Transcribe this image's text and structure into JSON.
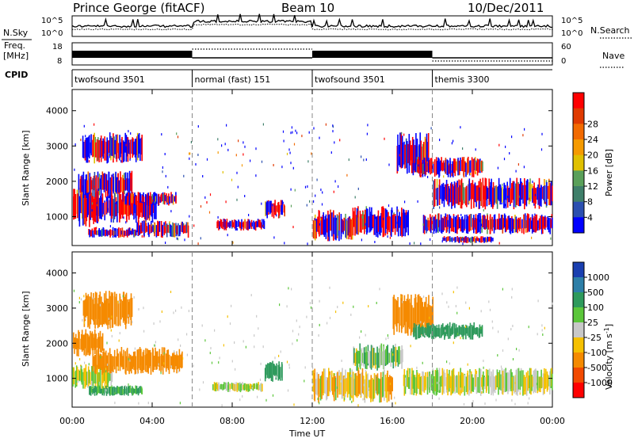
{
  "header": {
    "station": "Prince George (fitACF)",
    "beam": "Beam 10",
    "date": "10/Dec/2011"
  },
  "panel_labels": {
    "nsky": "N.Sky",
    "nsky_ticks": [
      "10^5",
      "10^0"
    ],
    "nsearch": "N.Search",
    "nsearch_ticks": [
      "10^5",
      "10^0"
    ],
    "freq_top": "Freq.",
    "freq_unit": "[MHz]",
    "freq_ticks": [
      "18",
      "8"
    ],
    "nave": "Nave",
    "nave_ticks": [
      "60",
      "0"
    ],
    "cpid": "CPID"
  },
  "cpid_segments": [
    {
      "label": "twofsound 3501",
      "start_hr": 0,
      "end_hr": 6
    },
    {
      "label": "normal (fast) 151",
      "start_hr": 6,
      "end_hr": 12
    },
    {
      "label": "twofsound 3501",
      "start_hr": 12,
      "end_hr": 18
    },
    {
      "label": "themis 3300",
      "start_hr": 18,
      "end_hr": 24
    }
  ],
  "time_axis": {
    "label": "Time UT",
    "ticks": [
      "00:00",
      "04:00",
      "08:00",
      "12:00",
      "16:00",
      "20:00",
      "00:00"
    ],
    "tick_hours": [
      0,
      4,
      8,
      12,
      16,
      20,
      24
    ]
  },
  "range_axis": {
    "label": "Slant Range [km]",
    "ticks": [
      "1000",
      "2000",
      "3000",
      "4000"
    ],
    "tick_values": [
      1000,
      2000,
      3000,
      4000
    ],
    "ylim": [
      180,
      4600
    ]
  },
  "power_scale": {
    "label": "Power [dB]",
    "ticks": [
      "4",
      "8",
      "12",
      "16",
      "20",
      "24",
      "28"
    ],
    "colors": [
      "#0000ff",
      "#2b4fb0",
      "#3f7f6a",
      "#5aa05a",
      "#e0c000",
      "#f59a00",
      "#f26a00",
      "#e03a00",
      "#ff0000"
    ]
  },
  "velocity_scale": {
    "label": "Velocity [m s",
    "label_sup": "-1",
    "label_end": "]",
    "ticks": [
      "1000",
      "500",
      "100",
      "25",
      "-25",
      "-100",
      "-500",
      "-1000"
    ],
    "colors": [
      "#1a3fb0",
      "#2d7fa8",
      "#2e9a5c",
      "#5bc63a",
      "#c8c8c8",
      "#f5c000",
      "#f58a00",
      "#f24a00",
      "#ff0000"
    ]
  },
  "chart_data": [
    {
      "type": "heatmap",
      "title": "Power",
      "xlabel": "Time UT",
      "ylabel": "Slant Range [km]",
      "xlim_hours": [
        0,
        24
      ],
      "ylim": [
        180,
        4600
      ],
      "colorbar": "Power [dB]",
      "regions": [
        {
          "t0": 0.0,
          "t1": 1.3,
          "r0": 700,
          "r1": 1900,
          "value_db": 26
        },
        {
          "t0": 0.3,
          "t1": 3.0,
          "r0": 1500,
          "r1": 2300,
          "value_db": 18
        },
        {
          "t0": 1.2,
          "t1": 4.2,
          "r0": 800,
          "r1": 1700,
          "value_db": 24
        },
        {
          "t0": 2.5,
          "t1": 5.2,
          "r0": 1300,
          "r1": 1700,
          "value_db": 12
        },
        {
          "t0": 0.5,
          "t1": 3.5,
          "r0": 2500,
          "r1": 3400,
          "value_db": 10
        },
        {
          "t0": 0.8,
          "t1": 3.2,
          "r0": 400,
          "r1": 700,
          "value_db": 8
        },
        {
          "t0": 3.2,
          "t1": 5.8,
          "r0": 400,
          "r1": 900,
          "value_db": 6
        },
        {
          "t0": 7.2,
          "t1": 9.6,
          "r0": 600,
          "r1": 950,
          "value_db": 6
        },
        {
          "t0": 9.6,
          "t1": 10.6,
          "r0": 950,
          "r1": 1500,
          "value_db": 22
        },
        {
          "t0": 12.0,
          "t1": 14.0,
          "r0": 300,
          "r1": 1200,
          "value_db": 14
        },
        {
          "t0": 14.0,
          "t1": 16.8,
          "r0": 400,
          "r1": 1300,
          "value_db": 24
        },
        {
          "t0": 16.2,
          "t1": 17.8,
          "r0": 2200,
          "r1": 3400,
          "value_db": 16
        },
        {
          "t0": 17.0,
          "t1": 20.5,
          "r0": 2100,
          "r1": 2700,
          "value_db": 20
        },
        {
          "t0": 17.5,
          "t1": 24.0,
          "r0": 500,
          "r1": 1100,
          "value_db": 27
        },
        {
          "t0": 18.5,
          "t1": 21.0,
          "r0": 250,
          "r1": 450,
          "value_db": 30
        },
        {
          "t0": 18.0,
          "t1": 24.0,
          "r0": 1200,
          "r1": 2100,
          "value_db": 8
        }
      ]
    },
    {
      "type": "heatmap",
      "title": "Velocity",
      "xlabel": "Time UT",
      "ylabel": "Slant Range [km]",
      "xlim_hours": [
        0,
        24
      ],
      "ylim": [
        180,
        4600
      ],
      "colorbar": "Velocity [m s-1]",
      "regions": [
        {
          "t0": 0.0,
          "t1": 1.5,
          "r0": 1600,
          "r1": 2400,
          "value_ms": -300
        },
        {
          "t0": 0.0,
          "t1": 2.0,
          "r0": 700,
          "r1": 1400,
          "value_ms": 0
        },
        {
          "t0": 1.0,
          "t1": 5.5,
          "r0": 1100,
          "r1": 1900,
          "value_ms": -200
        },
        {
          "t0": 0.5,
          "t1": 3.0,
          "r0": 2400,
          "r1": 3500,
          "value_ms": -300
        },
        {
          "t0": 0.8,
          "t1": 3.5,
          "r0": 500,
          "r1": 800,
          "value_ms": 150
        },
        {
          "t0": 7.0,
          "t1": 9.5,
          "r0": 600,
          "r1": 900,
          "value_ms": 0
        },
        {
          "t0": 9.6,
          "t1": 10.5,
          "r0": 900,
          "r1": 1500,
          "value_ms": 400
        },
        {
          "t0": 12.0,
          "t1": 16.0,
          "r0": 300,
          "r1": 1300,
          "value_ms": -60
        },
        {
          "t0": 14.0,
          "t1": 16.5,
          "r0": 1200,
          "r1": 2000,
          "value_ms": 60
        },
        {
          "t0": 16.0,
          "t1": 18.0,
          "r0": 2200,
          "r1": 3400,
          "value_ms": -300
        },
        {
          "t0": 17.0,
          "t1": 20.5,
          "r0": 2100,
          "r1": 2600,
          "value_ms": 200
        },
        {
          "t0": 16.5,
          "t1": 24.0,
          "r0": 500,
          "r1": 1300,
          "value_ms": 0
        }
      ]
    }
  ]
}
